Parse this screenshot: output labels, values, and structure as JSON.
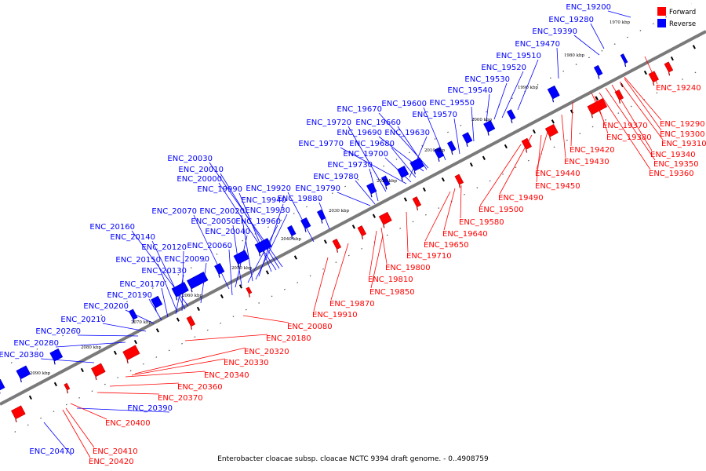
{
  "caption": "Enterobacter cloacae subsp. cloacae NCTC 9394 draft genome. - 0..4908759",
  "legend": {
    "forward": {
      "label": "Forward",
      "color": "#ff0000"
    },
    "reverse": {
      "label": "Reverse",
      "color": "#0000ff"
    }
  },
  "scale_ticks": [
    "1970 kbp",
    "1980 kbp",
    "1990 kbp",
    "2000 kbp",
    "2010 kbp",
    "2020 kbp",
    "2030 kbp",
    "2040 kbp",
    "2050 kbp",
    "2060 kbp",
    "2070 kbp",
    "2080 kbp",
    "2090 kbp"
  ],
  "reverse_labels": [
    "ENC_19200",
    "ENC_19280",
    "ENC_19390",
    "ENC_19470",
    "ENC_19510",
    "ENC_19520",
    "ENC_19530",
    "ENC_19540",
    "ENC_19550",
    "ENC_19570",
    "ENC_19600",
    "ENC_19670",
    "ENC_19660",
    "ENC_19630",
    "ENC_19720",
    "ENC_19690",
    "ENC_19680",
    "ENC_19770",
    "ENC_19700",
    "ENC_19730",
    "ENC_19780",
    "ENC_19790",
    "ENC_19880",
    "ENC_19920",
    "ENC_20030",
    "ENC_20010",
    "ENC_20000",
    "ENC_19990",
    "ENC_19940",
    "ENC_19930",
    "ENC_20070",
    "ENC_20020",
    "ENC_19960",
    "ENC_20050",
    "ENC_20040",
    "ENC_20160",
    "ENC_20140",
    "ENC_20060",
    "ENC_20120",
    "ENC_20150",
    "ENC_20090",
    "ENC_20130",
    "ENC_20170",
    "ENC_20190",
    "ENC_20200",
    "ENC_20210",
    "ENC_20260",
    "ENC_20280",
    "ENC_20380",
    "ENC_20390",
    "ENC_20470"
  ],
  "forward_labels": [
    "ENC_19240",
    "ENC_19290",
    "ENC_19370",
    "ENC_19300",
    "ENC_19380",
    "ENC_19310",
    "ENC_19420",
    "ENC_19340",
    "ENC_19350",
    "ENC_19430",
    "ENC_19360",
    "ENC_19440",
    "ENC_19450",
    "ENC_19490",
    "ENC_19500",
    "ENC_19580",
    "ENC_19640",
    "ENC_19650",
    "ENC_19710",
    "ENC_19800",
    "ENC_19810",
    "ENC_19850",
    "ENC_19870",
    "ENC_19910",
    "ENC_20080",
    "ENC_20180",
    "ENC_20320",
    "ENC_20330",
    "ENC_20340",
    "ENC_20360",
    "ENC_20370",
    "ENC_20400",
    "ENC_20410",
    "ENC_20420"
  ]
}
